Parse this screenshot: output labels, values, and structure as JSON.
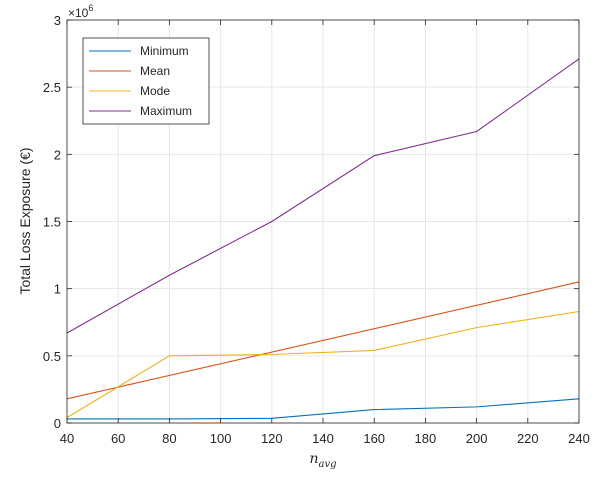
{
  "chart_data": {
    "type": "line",
    "xlabel_base": "n",
    "xlabel_sub": "avg",
    "ylabel": "Total Loss Exposure (€)",
    "y_exponent_base": "×10",
    "y_exponent_power": "6",
    "xlim": [
      40,
      240
    ],
    "ylim": [
      0,
      3
    ],
    "xticks": [
      40,
      60,
      80,
      100,
      120,
      140,
      160,
      180,
      200,
      220,
      240
    ],
    "yticks": [
      0,
      0.5,
      1,
      1.5,
      2,
      2.5,
      3
    ],
    "ytick_labels": [
      "0",
      "0.5",
      "1",
      "1.5",
      "2",
      "2.5",
      "3"
    ],
    "grid": true,
    "legend_position": "top-left",
    "x": [
      40,
      80,
      120,
      160,
      200,
      240
    ],
    "series": [
      {
        "name": "Minimum",
        "color": "#0072BD",
        "x": [
          40,
          80,
          120,
          160,
          200,
          240
        ],
        "values": [
          0.03,
          0.03,
          0.035,
          0.1,
          0.12,
          0.18
        ]
      },
      {
        "name": "Mean",
        "color": "#D95319",
        "x": [
          40,
          240
        ],
        "values": [
          0.18,
          1.05
        ]
      },
      {
        "name": "Mode",
        "color": "#EDB120",
        "x": [
          40,
          80,
          120,
          160,
          200,
          240
        ],
        "values": [
          0.04,
          0.5,
          0.51,
          0.54,
          0.71,
          0.83
        ]
      },
      {
        "name": "Maximum",
        "color": "#7E2F8E",
        "x": [
          40,
          80,
          120,
          160,
          200,
          240
        ],
        "values": [
          0.67,
          1.1,
          1.5,
          1.99,
          2.17,
          2.71
        ]
      }
    ]
  }
}
